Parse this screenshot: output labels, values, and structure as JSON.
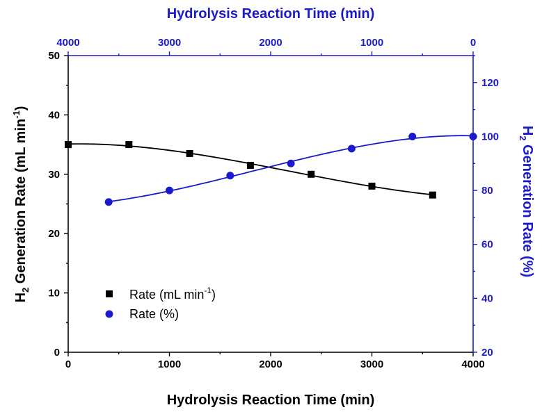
{
  "chart_data": {
    "type": "scatter",
    "title": "",
    "x_bottom": {
      "label": "Hydrolysis Reaction Time (min)",
      "range": [
        0,
        4000
      ],
      "ticks": [
        0,
        1000,
        2000,
        3000,
        4000
      ],
      "tick_labels": [
        "0",
        "1000",
        "2000",
        "3000",
        "4000"
      ],
      "color": "#000000"
    },
    "x_top": {
      "label": "Hydrolysis Reaction Time (min)",
      "range": [
        4000,
        0
      ],
      "ticks": [
        4000,
        3000,
        2000,
        1000,
        0
      ],
      "tick_labels": [
        "4000",
        "3000",
        "2000",
        "1000",
        "0"
      ],
      "color": "#1a1acc"
    },
    "y_left": {
      "label_main": "H",
      "label_sub": "2",
      "label_rest": " Generation Rate (mL min",
      "label_sup": "-1",
      "label_close": ")",
      "range": [
        0,
        50
      ],
      "ticks": [
        0,
        10,
        20,
        30,
        40,
        50
      ],
      "tick_labels": [
        "0",
        "10",
        "20",
        "30",
        "40",
        "50"
      ],
      "color": "#000000"
    },
    "y_right": {
      "label_main": "H",
      "label_sub": "2",
      "label_rest": " Generation Rate (%)",
      "range": [
        20,
        130
      ],
      "ticks": [
        20,
        40,
        60,
        80,
        100,
        120
      ],
      "tick_labels": [
        "20",
        "40",
        "60",
        "80",
        "100",
        "120"
      ],
      "color": "#1a1acc"
    },
    "series": [
      {
        "name": "Rate (mL min",
        "name_sup": "-1",
        "name_close": ")",
        "marker": "square",
        "color": "#000000",
        "x_axis": "bottom",
        "y_axis": "left",
        "x": [
          0,
          600,
          1200,
          1800,
          2400,
          3000,
          3600
        ],
        "y": [
          35.0,
          35.0,
          33.5,
          31.5,
          30.0,
          28.0,
          26.5
        ]
      },
      {
        "name": "Rate (%)",
        "marker": "circle",
        "color": "#1a1acc",
        "x_axis": "bottom",
        "y_axis": "right",
        "x": [
          400,
          1000,
          1600,
          2200,
          2800,
          3400,
          4000
        ],
        "y": [
          75.7,
          80.0,
          85.5,
          90.0,
          95.5,
          100.0,
          100.0
        ]
      }
    ],
    "grid": false,
    "legend_placement": "bottom-left"
  }
}
